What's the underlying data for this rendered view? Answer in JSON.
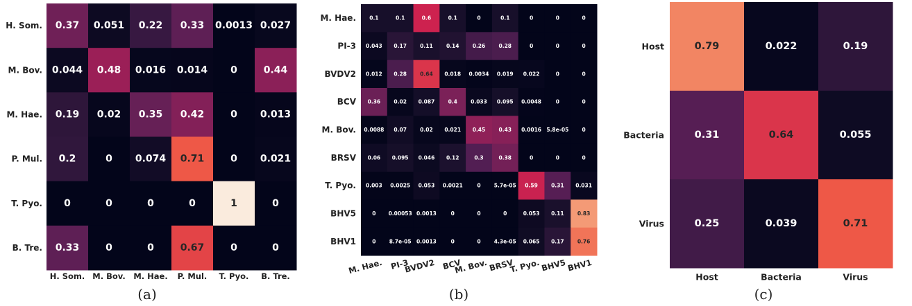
{
  "chart_data": [
    {
      "type": "heatmap",
      "rows": [
        "H. Som.",
        "M. Bov.",
        "M. Hae.",
        "P. Mul.",
        "T. Pyo.",
        "B. Tre."
      ],
      "cols": [
        "H. Som.",
        "M. Bov.",
        "M. Hae.",
        "P. Mul.",
        "T. Pyo.",
        "B. Tre."
      ],
      "values": [
        [
          0.37,
          0.051,
          0.22,
          0.33,
          0.0013,
          0.027
        ],
        [
          0.044,
          0.48,
          0.016,
          0.014,
          0,
          0.44
        ],
        [
          0.19,
          0.02,
          0.35,
          0.42,
          0,
          0.013
        ],
        [
          0.2,
          0,
          0.074,
          0.71,
          0,
          0.021
        ],
        [
          0,
          0,
          0,
          0,
          1,
          0
        ],
        [
          0.33,
          0,
          0,
          0.67,
          0,
          0
        ]
      ],
      "labels": [
        [
          "0.37",
          "0.051",
          "0.22",
          "0.33",
          "0.0013",
          "0.027"
        ],
        [
          "0.044",
          "0.48",
          "0.016",
          "0.014",
          "0",
          "0.44"
        ],
        [
          "0.19",
          "0.02",
          "0.35",
          "0.42",
          "0",
          "0.013"
        ],
        [
          "0.2",
          "0",
          "0.074",
          "0.71",
          "0",
          "0.021"
        ],
        [
          "0",
          "0",
          "0",
          "0",
          "1",
          "0"
        ],
        [
          "0.33",
          "0",
          "0",
          "0.67",
          "0",
          "0"
        ]
      ],
      "caption": "(a)",
      "colormap": "rocket"
    },
    {
      "type": "heatmap",
      "rows": [
        "M. Hae.",
        "PI-3",
        "BVDV2",
        "BCV",
        "M. Bov.",
        "BRSV",
        "T. Pyo.",
        "BHV5",
        "BHV1"
      ],
      "cols": [
        "M. Hae.",
        "PI-3",
        "BVDV2",
        "BCV",
        "M. Bov.",
        "BRSV",
        "T. Pyo.",
        "BHV5",
        "BHV1"
      ],
      "values": [
        [
          0.1,
          0.1,
          0.6,
          0.1,
          0,
          0.1,
          0,
          0,
          0
        ],
        [
          0.043,
          0.17,
          0.11,
          0.14,
          0.26,
          0.28,
          0,
          0,
          0
        ],
        [
          0.012,
          0.28,
          0.64,
          0.018,
          0.0034,
          0.019,
          0.022,
          0,
          0
        ],
        [
          0.36,
          0.02,
          0.087,
          0.4,
          0.033,
          0.095,
          0.0048,
          0,
          0
        ],
        [
          0.0088,
          0.07,
          0.02,
          0.021,
          0.45,
          0.43,
          0.0016,
          5.8e-05,
          0
        ],
        [
          0.06,
          0.095,
          0.046,
          0.12,
          0.3,
          0.38,
          0,
          0,
          0
        ],
        [
          0.003,
          0.0025,
          0.053,
          0.0021,
          0,
          5.7e-05,
          0.59,
          0.31,
          0.031
        ],
        [
          0,
          0.00053,
          0.0013,
          0,
          0,
          0,
          0.053,
          0.11,
          0.83
        ],
        [
          0,
          8.7e-05,
          0.0013,
          0,
          0,
          4.3e-05,
          0.065,
          0.17,
          0.76
        ]
      ],
      "labels": [
        [
          "0.1",
          "0.1",
          "0.6",
          "0.1",
          "0",
          "0.1",
          "0",
          "0",
          "0"
        ],
        [
          "0.043",
          "0.17",
          "0.11",
          "0.14",
          "0.26",
          "0.28",
          "0",
          "0",
          "0"
        ],
        [
          "0.012",
          "0.28",
          "0.64",
          "0.018",
          "0.0034",
          "0.019",
          "0.022",
          "0",
          "0"
        ],
        [
          "0.36",
          "0.02",
          "0.087",
          "0.4",
          "0.033",
          "0.095",
          "0.0048",
          "0",
          "0"
        ],
        [
          "0.0088",
          "0.07",
          "0.02",
          "0.021",
          "0.45",
          "0.43",
          "0.0016",
          "5.8e-05",
          "0"
        ],
        [
          "0.06",
          "0.095",
          "0.046",
          "0.12",
          "0.3",
          "0.38",
          "0",
          "0",
          "0"
        ],
        [
          "0.003",
          "0.0025",
          "0.053",
          "0.0021",
          "0",
          "5.7e-05",
          "0.59",
          "0.31",
          "0.031"
        ],
        [
          "0",
          "0.00053",
          "0.0013",
          "0",
          "0",
          "0",
          "0.053",
          "0.11",
          "0.83"
        ],
        [
          "0",
          "8.7e-05",
          "0.0013",
          "0",
          "0",
          "4.3e-05",
          "0.065",
          "0.17",
          "0.76"
        ]
      ],
      "caption": "(b)",
      "colormap": "rocket"
    },
    {
      "type": "heatmap",
      "rows": [
        "Host",
        "Bacteria",
        "Virus"
      ],
      "cols": [
        "Host",
        "Bacteria",
        "Virus"
      ],
      "values": [
        [
          0.79,
          0.022,
          0.19
        ],
        [
          0.31,
          0.64,
          0.055
        ],
        [
          0.25,
          0.039,
          0.71
        ]
      ],
      "labels": [
        [
          "0.79",
          "0.022",
          "0.19"
        ],
        [
          "0.31",
          "0.64",
          "0.055"
        ],
        [
          "0.25",
          "0.039",
          "0.71"
        ]
      ],
      "caption": "(c)",
      "colormap": "rocket"
    }
  ]
}
